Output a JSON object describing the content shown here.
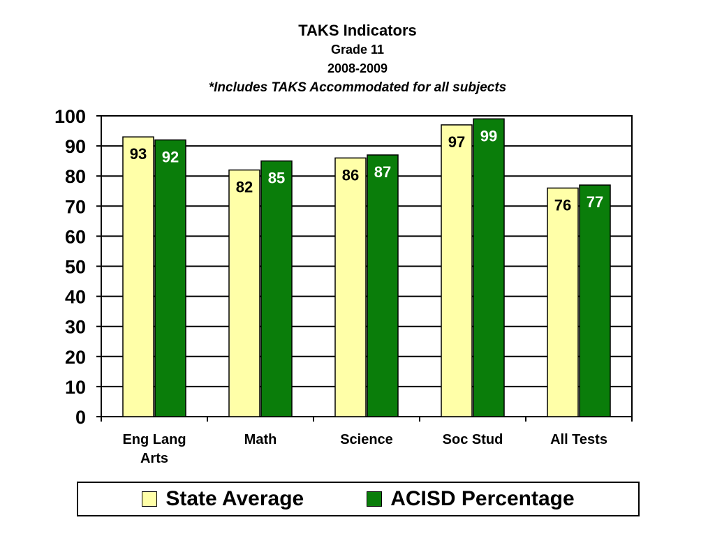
{
  "chart_data": {
    "type": "bar",
    "title": "TAKS Indicators",
    "subtitle_lines": [
      "Grade 11",
      "2008-2009",
      "*Includes TAKS Accommodated for all subjects"
    ],
    "categories": [
      [
        "Eng Lang",
        "Arts"
      ],
      [
        "Math"
      ],
      [
        "Science"
      ],
      [
        "Soc Stud"
      ],
      [
        "All Tests"
      ]
    ],
    "series": [
      {
        "name": "State Average",
        "values": [
          93,
          82,
          86,
          97,
          76
        ],
        "color": "#ffffa8",
        "label_color": "#000000"
      },
      {
        "name": "ACISD Percentage",
        "values": [
          92,
          85,
          87,
          99,
          77
        ],
        "color": "#0a7d0a",
        "label_color": "#ffffff"
      }
    ],
    "ylim": [
      0,
      100
    ],
    "yticks": [
      0,
      10,
      20,
      30,
      40,
      50,
      60,
      70,
      80,
      90,
      100
    ],
    "grid": true,
    "legend_position": "bottom"
  }
}
